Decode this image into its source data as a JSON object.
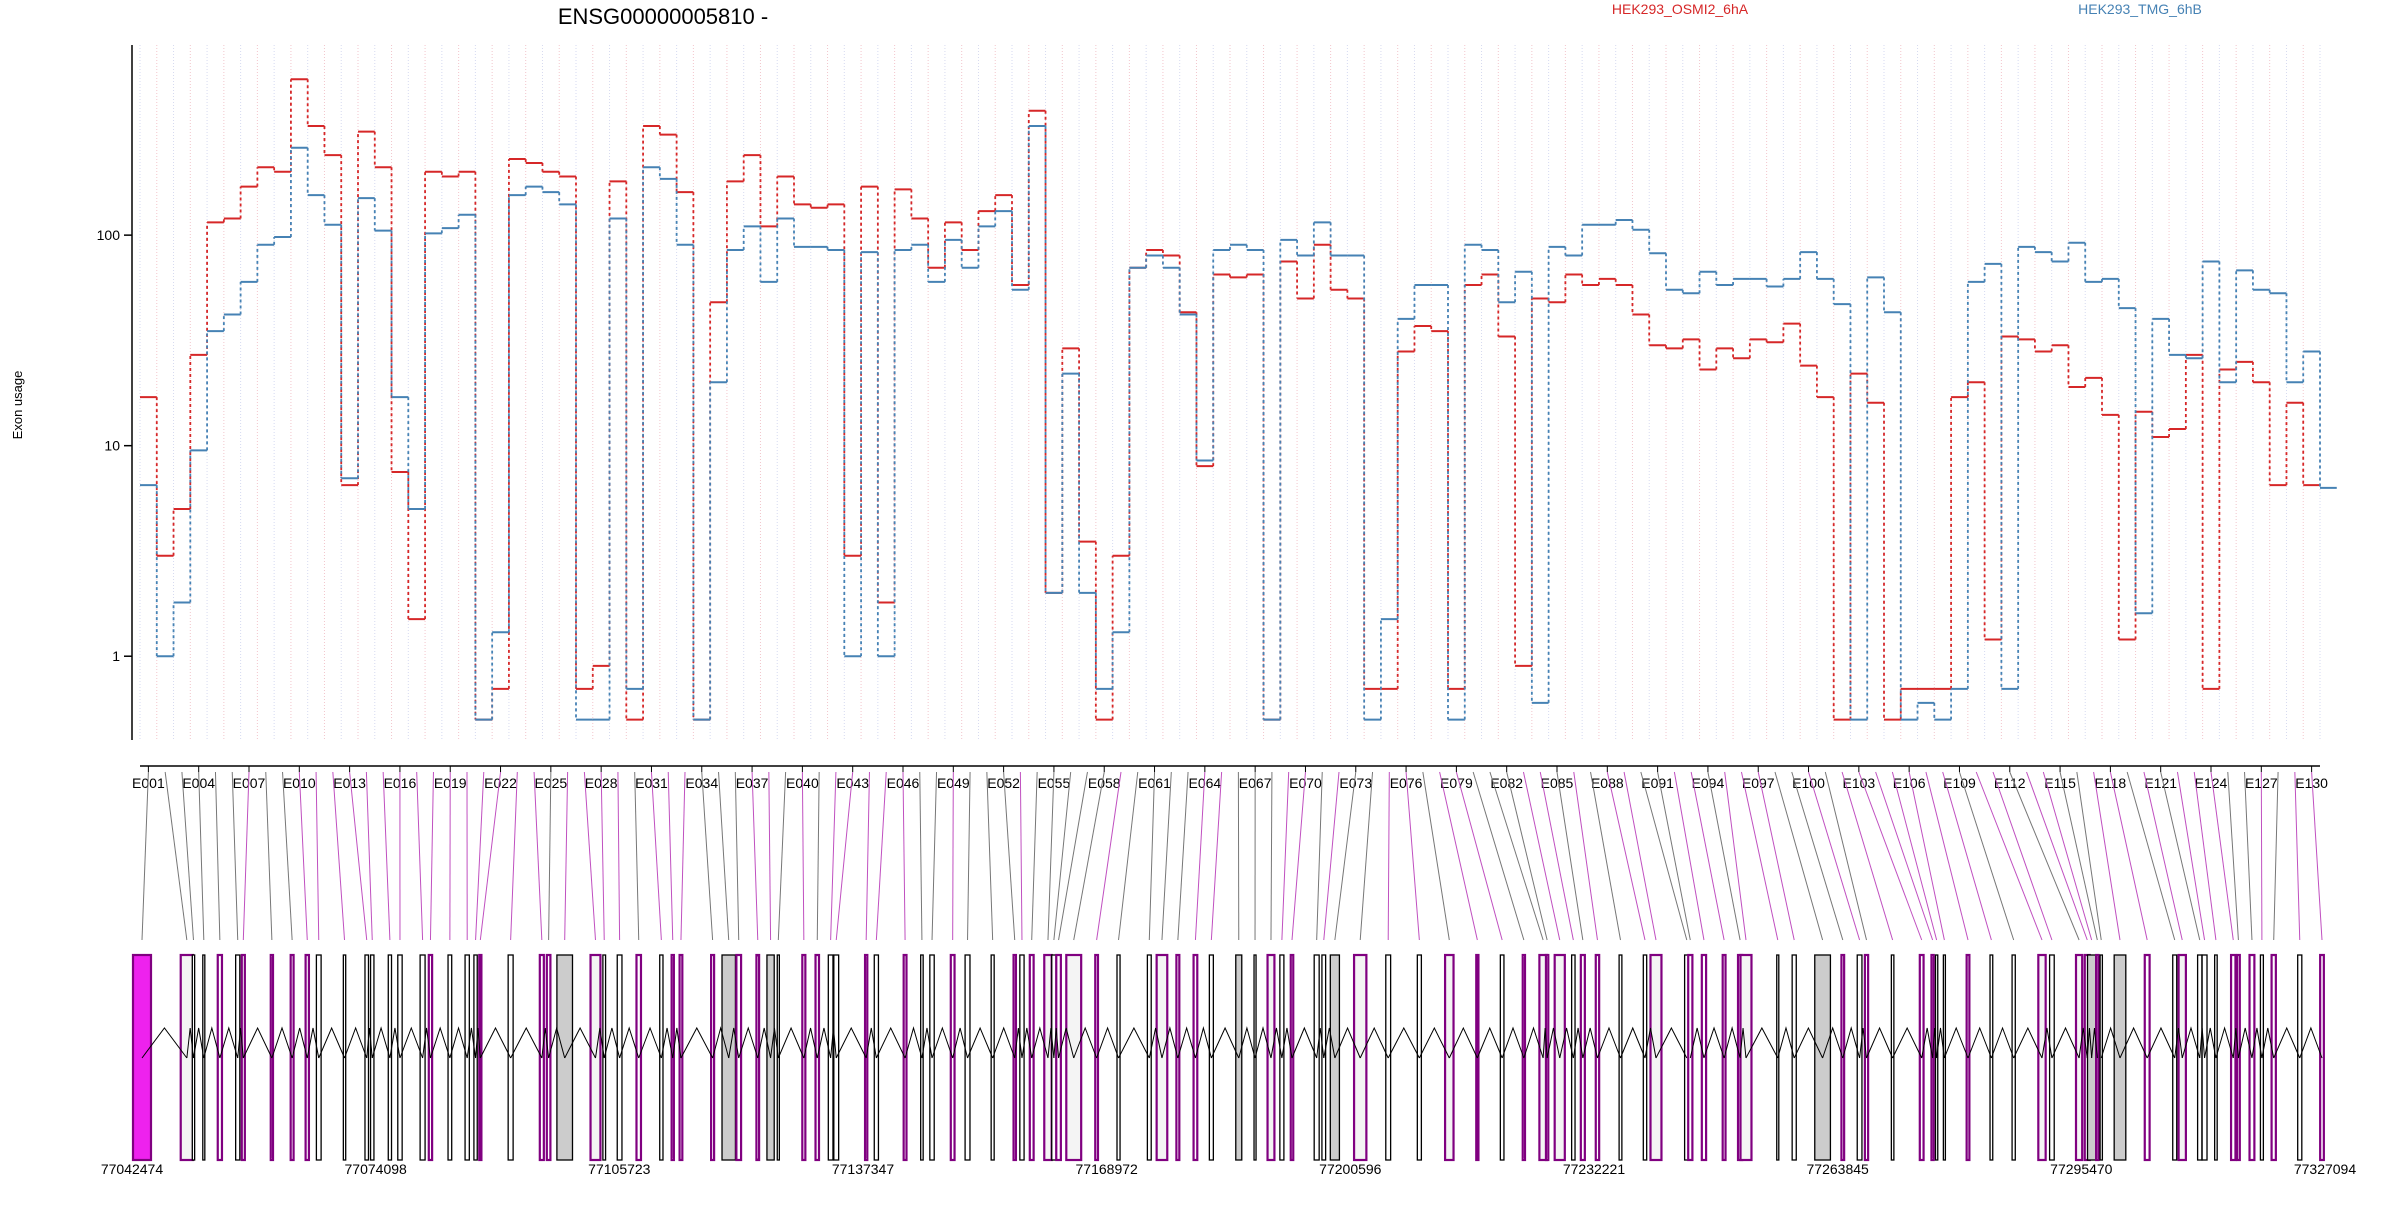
{
  "chart_data": {
    "type": "line",
    "title": "ENSG00000005810 -",
    "ylabel": "Exon usage",
    "y_scale": "log",
    "ylim": [
      0.4,
      800
    ],
    "y_ticks": [
      "1",
      "10",
      "100"
    ],
    "y_tick_values": [
      1,
      10,
      100
    ],
    "grid": "vertical dotted lines per exon",
    "legend_placement": "top",
    "x_tick_labels": [
      "E001",
      "E004",
      "E007",
      "E010",
      "E013",
      "E016",
      "E019",
      "E022",
      "E025",
      "E028",
      "E031",
      "E034",
      "E037",
      "E040",
      "E043",
      "E046",
      "E049",
      "E052",
      "E055",
      "E058",
      "E061",
      "E064",
      "E067",
      "E070",
      "E073",
      "E076",
      "E079",
      "E082",
      "E085",
      "E088",
      "E091",
      "E094",
      "E097",
      "E100",
      "E103",
      "E106",
      "E109",
      "E112",
      "E115",
      "E118",
      "E121",
      "E124",
      "E127",
      "E130"
    ],
    "exon_count": 130,
    "series": [
      {
        "name": "HEK293_OSMI2_6hA",
        "color": "#d62728",
        "values": [
          17,
          3,
          5,
          27,
          115,
          120,
          170,
          210,
          200,
          550,
          330,
          240,
          6.5,
          310,
          210,
          7.5,
          1.5,
          200,
          190,
          200,
          0.5,
          0.7,
          230,
          220,
          200,
          190,
          0.7,
          0.9,
          180,
          0.5,
          330,
          300,
          160,
          0.5,
          48,
          180,
          240,
          110,
          190,
          140,
          135,
          140,
          3,
          170,
          1.8,
          165,
          120,
          70,
          115,
          85,
          130,
          155,
          58,
          390,
          2,
          29,
          3.5,
          0.5,
          3,
          70,
          85,
          80,
          43,
          8,
          65,
          63,
          65,
          0.5,
          75,
          50,
          90,
          55,
          50,
          0.7,
          0.7,
          28,
          37,
          35,
          0.7,
          58,
          65,
          33,
          0.9,
          50,
          48,
          65,
          58,
          62,
          58,
          42,
          30,
          29,
          32,
          23,
          29,
          26,
          32,
          31,
          38,
          24,
          17,
          0.5,
          22,
          16,
          0.5,
          0.7,
          0.7,
          0.7,
          17,
          20,
          1.2,
          33,
          32,
          28,
          30,
          19,
          21,
          14,
          1.2,
          14.5,
          11,
          12,
          27,
          0.7,
          23,
          25,
          20,
          6.5,
          16,
          6.5
        ]
      },
      {
        "name": "HEK293_TMG_6hB",
        "color": "#4682b4",
        "values": [
          6.5,
          1,
          1.8,
          9.5,
          35,
          42,
          60,
          90,
          98,
          260,
          155,
          112,
          7,
          150,
          105,
          17,
          5,
          102,
          108,
          125,
          0.5,
          1.3,
          155,
          170,
          160,
          140,
          0.5,
          0.5,
          120,
          0.7,
          210,
          185,
          90,
          0.5,
          20,
          85,
          110,
          60,
          120,
          88,
          88,
          85,
          1,
          83,
          1,
          85,
          90,
          60,
          95,
          70,
          110,
          130,
          55,
          330,
          2,
          22,
          2,
          0.7,
          1.3,
          70,
          80,
          70,
          42,
          8.5,
          85,
          90,
          85,
          0.5,
          95,
          80,
          115,
          80,
          80,
          0.5,
          1.5,
          40,
          58,
          58,
          0.5,
          90,
          85,
          48,
          67,
          0.6,
          88,
          80,
          112,
          112,
          118,
          106,
          82,
          55,
          53,
          67,
          58,
          62,
          62,
          57,
          62,
          83,
          62,
          47,
          0.5,
          63,
          43,
          0.5,
          0.6,
          0.5,
          0.7,
          60,
          73,
          0.7,
          88,
          83,
          75,
          92,
          60,
          62,
          45,
          1.6,
          40,
          27,
          26,
          75,
          20,
          68,
          55,
          53,
          20,
          28,
          6.3
        ]
      }
    ],
    "gene_track": {
      "coordinate_labels": [
        "77042474",
        "77074098",
        "77105723",
        "77137347",
        "77168972",
        "77200596",
        "77232221",
        "77263845",
        "77295470",
        "77327094"
      ],
      "genomic_range": [
        77042474,
        77327094
      ]
    }
  }
}
